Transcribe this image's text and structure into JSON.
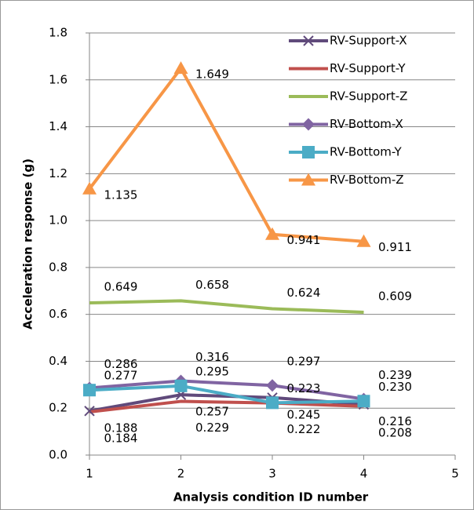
{
  "chart_data": {
    "type": "line",
    "xlabel": "Analysis condition ID number",
    "ylabel": "Acceleration response (g)",
    "x": [
      1,
      2,
      3,
      4
    ],
    "xlim": [
      1,
      5
    ],
    "xticks": [
      1,
      2,
      3,
      4,
      5
    ],
    "ylim": [
      0,
      1.8
    ],
    "yticks": [
      {
        "value": 0,
        "label": "0.0"
      },
      0.2,
      0.4,
      0.6,
      0.8,
      {
        "value": 1,
        "label": "1.0"
      },
      1.2,
      1.4,
      1.6,
      1.8
    ],
    "grid": true,
    "legend": "upper right",
    "series": [
      {
        "name": "RV-Support-X",
        "color": "#604a7b",
        "marker": "x",
        "values": [
          0.188,
          0.257,
          0.245,
          0.216
        ],
        "value_labels": [
          "0.188",
          "0.257",
          "0.245",
          "0.216"
        ]
      },
      {
        "name": "RV-Support-Y",
        "color": "#c0504d",
        "marker": "none",
        "values": [
          0.184,
          0.229,
          0.222,
          0.208
        ],
        "value_labels": [
          "0.184",
          "0.229",
          "0.222",
          "0.208"
        ]
      },
      {
        "name": "RV-Support-Z",
        "color": "#9bbb59",
        "marker": "none",
        "values": [
          0.649,
          0.658,
          0.624,
          0.609
        ],
        "value_labels": [
          "0.649",
          "0.658",
          "0.624",
          "0.609"
        ]
      },
      {
        "name": "RV-Bottom-X",
        "color": "#8064a2",
        "marker": "diamond",
        "values": [
          0.286,
          0.316,
          0.297,
          0.239
        ],
        "value_labels": [
          "0.286",
          "0.316",
          "0.297",
          "0.239"
        ]
      },
      {
        "name": "RV-Bottom-Y",
        "color": "#4bacc6",
        "marker": "square",
        "values": [
          0.277,
          0.295,
          0.223,
          0.23
        ],
        "value_labels": [
          "0.277",
          "0.295",
          "0.223",
          "0.230"
        ]
      },
      {
        "name": "RV-Bottom-Z",
        "color": "#f79646",
        "marker": "triangle",
        "values": [
          1.135,
          1.649,
          0.941,
          0.911
        ],
        "value_labels": [
          "1.135",
          "1.649",
          "0.941",
          "0.911"
        ]
      }
    ]
  }
}
